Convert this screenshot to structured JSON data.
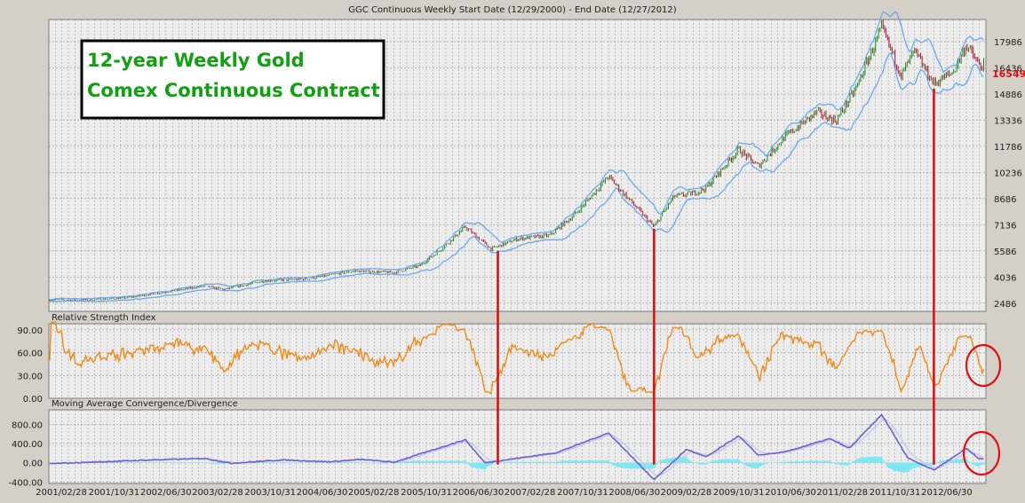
{
  "chart_data": {
    "type": "line",
    "title": "GGC Continuous Weekly  Start Date (12/29/2000) - End Date (12/27/2012)",
    "annotation_lines": [
      "12-year Weekly Gold",
      "Comex Continuous Contract"
    ],
    "colors": {
      "background": "#ececec",
      "grid": "#8c8c8c",
      "up_candle": "#1a8a1a",
      "down_candle": "#b01030",
      "bands": "#6aaaf0",
      "rsi": "#f08a18",
      "macd": "#6a5fd4",
      "signal": "#c8c8e8",
      "histogram": "#7fe8f0",
      "marker": "#e01010",
      "last_price": "#e01010",
      "annotation_text": "#11a011"
    },
    "x_ticks": [
      "2001/02/28",
      "2001/10/31",
      "2002/06/30",
      "2003/02/28",
      "2003/10/31",
      "2004/06/30",
      "2005/02/28",
      "2005/10/31",
      "2006/06/30",
      "2007/02/28",
      "2007/10/31",
      "2008/06/30",
      "2009/02/28",
      "2009/10/31",
      "2010/06/30",
      "2011/02/28",
      "2011/10/31",
      "2012/06/30"
    ],
    "price_panel": {
      "y_ticks": [
        "17986",
        "16436",
        "14886",
        "13336",
        "11786",
        "10236",
        "8686",
        "7136",
        "5586",
        "4036",
        "2486"
      ],
      "ylim": [
        2000,
        19300
      ],
      "last_price": "16549",
      "series": [
        {
          "x": "2001/01",
          "y": 2680
        },
        {
          "x": "2001/07",
          "y": 2680
        },
        {
          "x": "2002/01",
          "y": 2800
        },
        {
          "x": "2002/07",
          "y": 3140
        },
        {
          "x": "2003/01",
          "y": 3500
        },
        {
          "x": "2003/04",
          "y": 3300
        },
        {
          "x": "2003/10",
          "y": 3800
        },
        {
          "x": "2004/04",
          "y": 3900
        },
        {
          "x": "2004/06",
          "y": 4000
        },
        {
          "x": "2004/12",
          "y": 4400
        },
        {
          "x": "2005/06",
          "y": 4300
        },
        {
          "x": "2005/10",
          "y": 4700
        },
        {
          "x": "2006/01",
          "y": 5600
        },
        {
          "x": "2006/05",
          "y": 7000
        },
        {
          "x": "2006/09",
          "y": 5700
        },
        {
          "x": "2007/01",
          "y": 6300
        },
        {
          "x": "2007/06",
          "y": 6500
        },
        {
          "x": "2007/10",
          "y": 7800
        },
        {
          "x": "2008/03",
          "y": 10000
        },
        {
          "x": "2008/06",
          "y": 8700
        },
        {
          "x": "2008/10",
          "y": 7000
        },
        {
          "x": "2009/01",
          "y": 8800
        },
        {
          "x": "2009/04",
          "y": 9000
        },
        {
          "x": "2009/06",
          "y": 9300
        },
        {
          "x": "2009/11",
          "y": 11600
        },
        {
          "x": "2010/02",
          "y": 10600
        },
        {
          "x": "2010/06",
          "y": 12300
        },
        {
          "x": "2010/11",
          "y": 13800
        },
        {
          "x": "2011/02",
          "y": 13300
        },
        {
          "x": "2011/05",
          "y": 15200
        },
        {
          "x": "2011/09",
          "y": 18800
        },
        {
          "x": "2011/12",
          "y": 16000
        },
        {
          "x": "2012/02",
          "y": 17400
        },
        {
          "x": "2012/05",
          "y": 15500
        },
        {
          "x": "2012/08",
          "y": 16200
        },
        {
          "x": "2012/10",
          "y": 17800
        },
        {
          "x": "2012/12",
          "y": 16549
        }
      ]
    },
    "rsi_panel": {
      "title": "Relative Strength Index",
      "y_ticks": [
        "90.00",
        "60.00",
        "30.00",
        "0.00"
      ],
      "ylim": [
        0,
        98
      ]
    },
    "macd_panel": {
      "title": "Moving Average Convergence/Divergence",
      "y_ticks": [
        "800.00",
        "400.00",
        "0.00",
        "-400.00"
      ],
      "ylim": [
        -430,
        1100
      ],
      "macd_series": [
        {
          "x": "2001/01",
          "y": -20
        },
        {
          "x": "2002/05",
          "y": 60
        },
        {
          "x": "2003/01",
          "y": 90
        },
        {
          "x": "2003/05",
          "y": -10
        },
        {
          "x": "2004/01",
          "y": 60
        },
        {
          "x": "2004/08",
          "y": 20
        },
        {
          "x": "2005/01",
          "y": 70
        },
        {
          "x": "2005/06",
          "y": 10
        },
        {
          "x": "2006/05",
          "y": 480
        },
        {
          "x": "2006/08",
          "y": 0
        },
        {
          "x": "2007/07",
          "y": 210
        },
        {
          "x": "2008/03",
          "y": 620
        },
        {
          "x": "2008/10",
          "y": -350
        },
        {
          "x": "2009/03",
          "y": 280
        },
        {
          "x": "2009/06",
          "y": 120
        },
        {
          "x": "2009/11",
          "y": 560
        },
        {
          "x": "2010/02",
          "y": 160
        },
        {
          "x": "2010/06",
          "y": 220
        },
        {
          "x": "2011/01",
          "y": 500
        },
        {
          "x": "2011/04",
          "y": 300
        },
        {
          "x": "2011/09",
          "y": 1000
        },
        {
          "x": "2012/01",
          "y": 100
        },
        {
          "x": "2012/05",
          "y": -150
        },
        {
          "x": "2012/10",
          "y": 300
        },
        {
          "x": "2012/12",
          "y": 80
        }
      ]
    },
    "markers": [
      {
        "x": "2006/10",
        "y": 5586
      },
      {
        "x": "2008/10",
        "y": 6900
      },
      {
        "x": "2012/05",
        "y": 15200
      }
    ]
  }
}
